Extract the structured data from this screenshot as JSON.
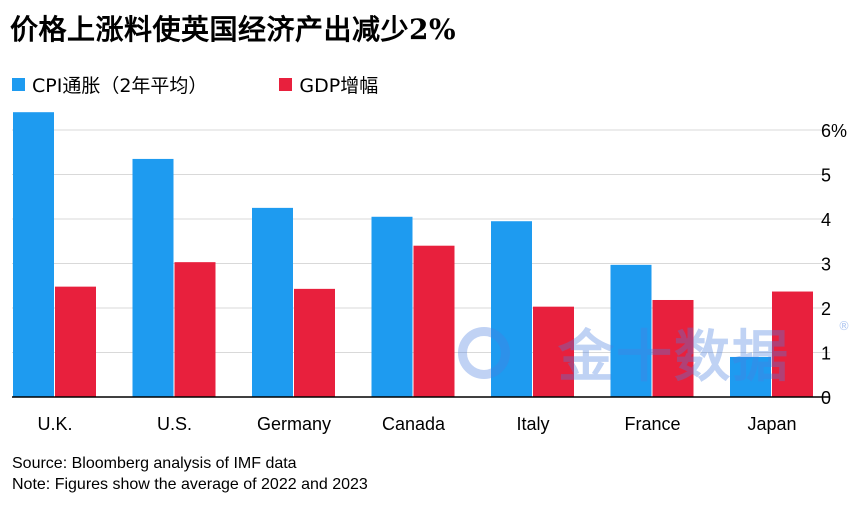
{
  "title": "价格上涨料使英国经济产出减少2%",
  "colors": {
    "cpi": "#1e9bf0",
    "gdp": "#e8203d",
    "grid": "#d9d9d9",
    "axis": "#000000"
  },
  "watermark": {
    "text": "金十数据",
    "registered": "®"
  },
  "chart_data": {
    "type": "bar",
    "categories": [
      "U.K.",
      "U.S.",
      "Germany",
      "Canada",
      "Italy",
      "France",
      "Japan"
    ],
    "series": [
      {
        "name": "CPI通胀（2年平均）",
        "values": [
          6.4,
          5.35,
          4.25,
          4.05,
          3.95,
          2.97,
          0.9
        ]
      },
      {
        "name": "GDP增幅",
        "values": [
          2.48,
          3.03,
          2.43,
          3.4,
          2.03,
          2.18,
          2.37
        ]
      }
    ],
    "y_ticks": [
      "0",
      "1",
      "2",
      "3",
      "4",
      "5",
      "6%"
    ],
    "ylim": [
      0,
      6.4
    ],
    "grid": true,
    "legend_position": "top-left"
  },
  "footer": {
    "source": "Source: Bloomberg analysis of IMF data",
    "note": "Note: Figures show the average of 2022 and 2023"
  }
}
